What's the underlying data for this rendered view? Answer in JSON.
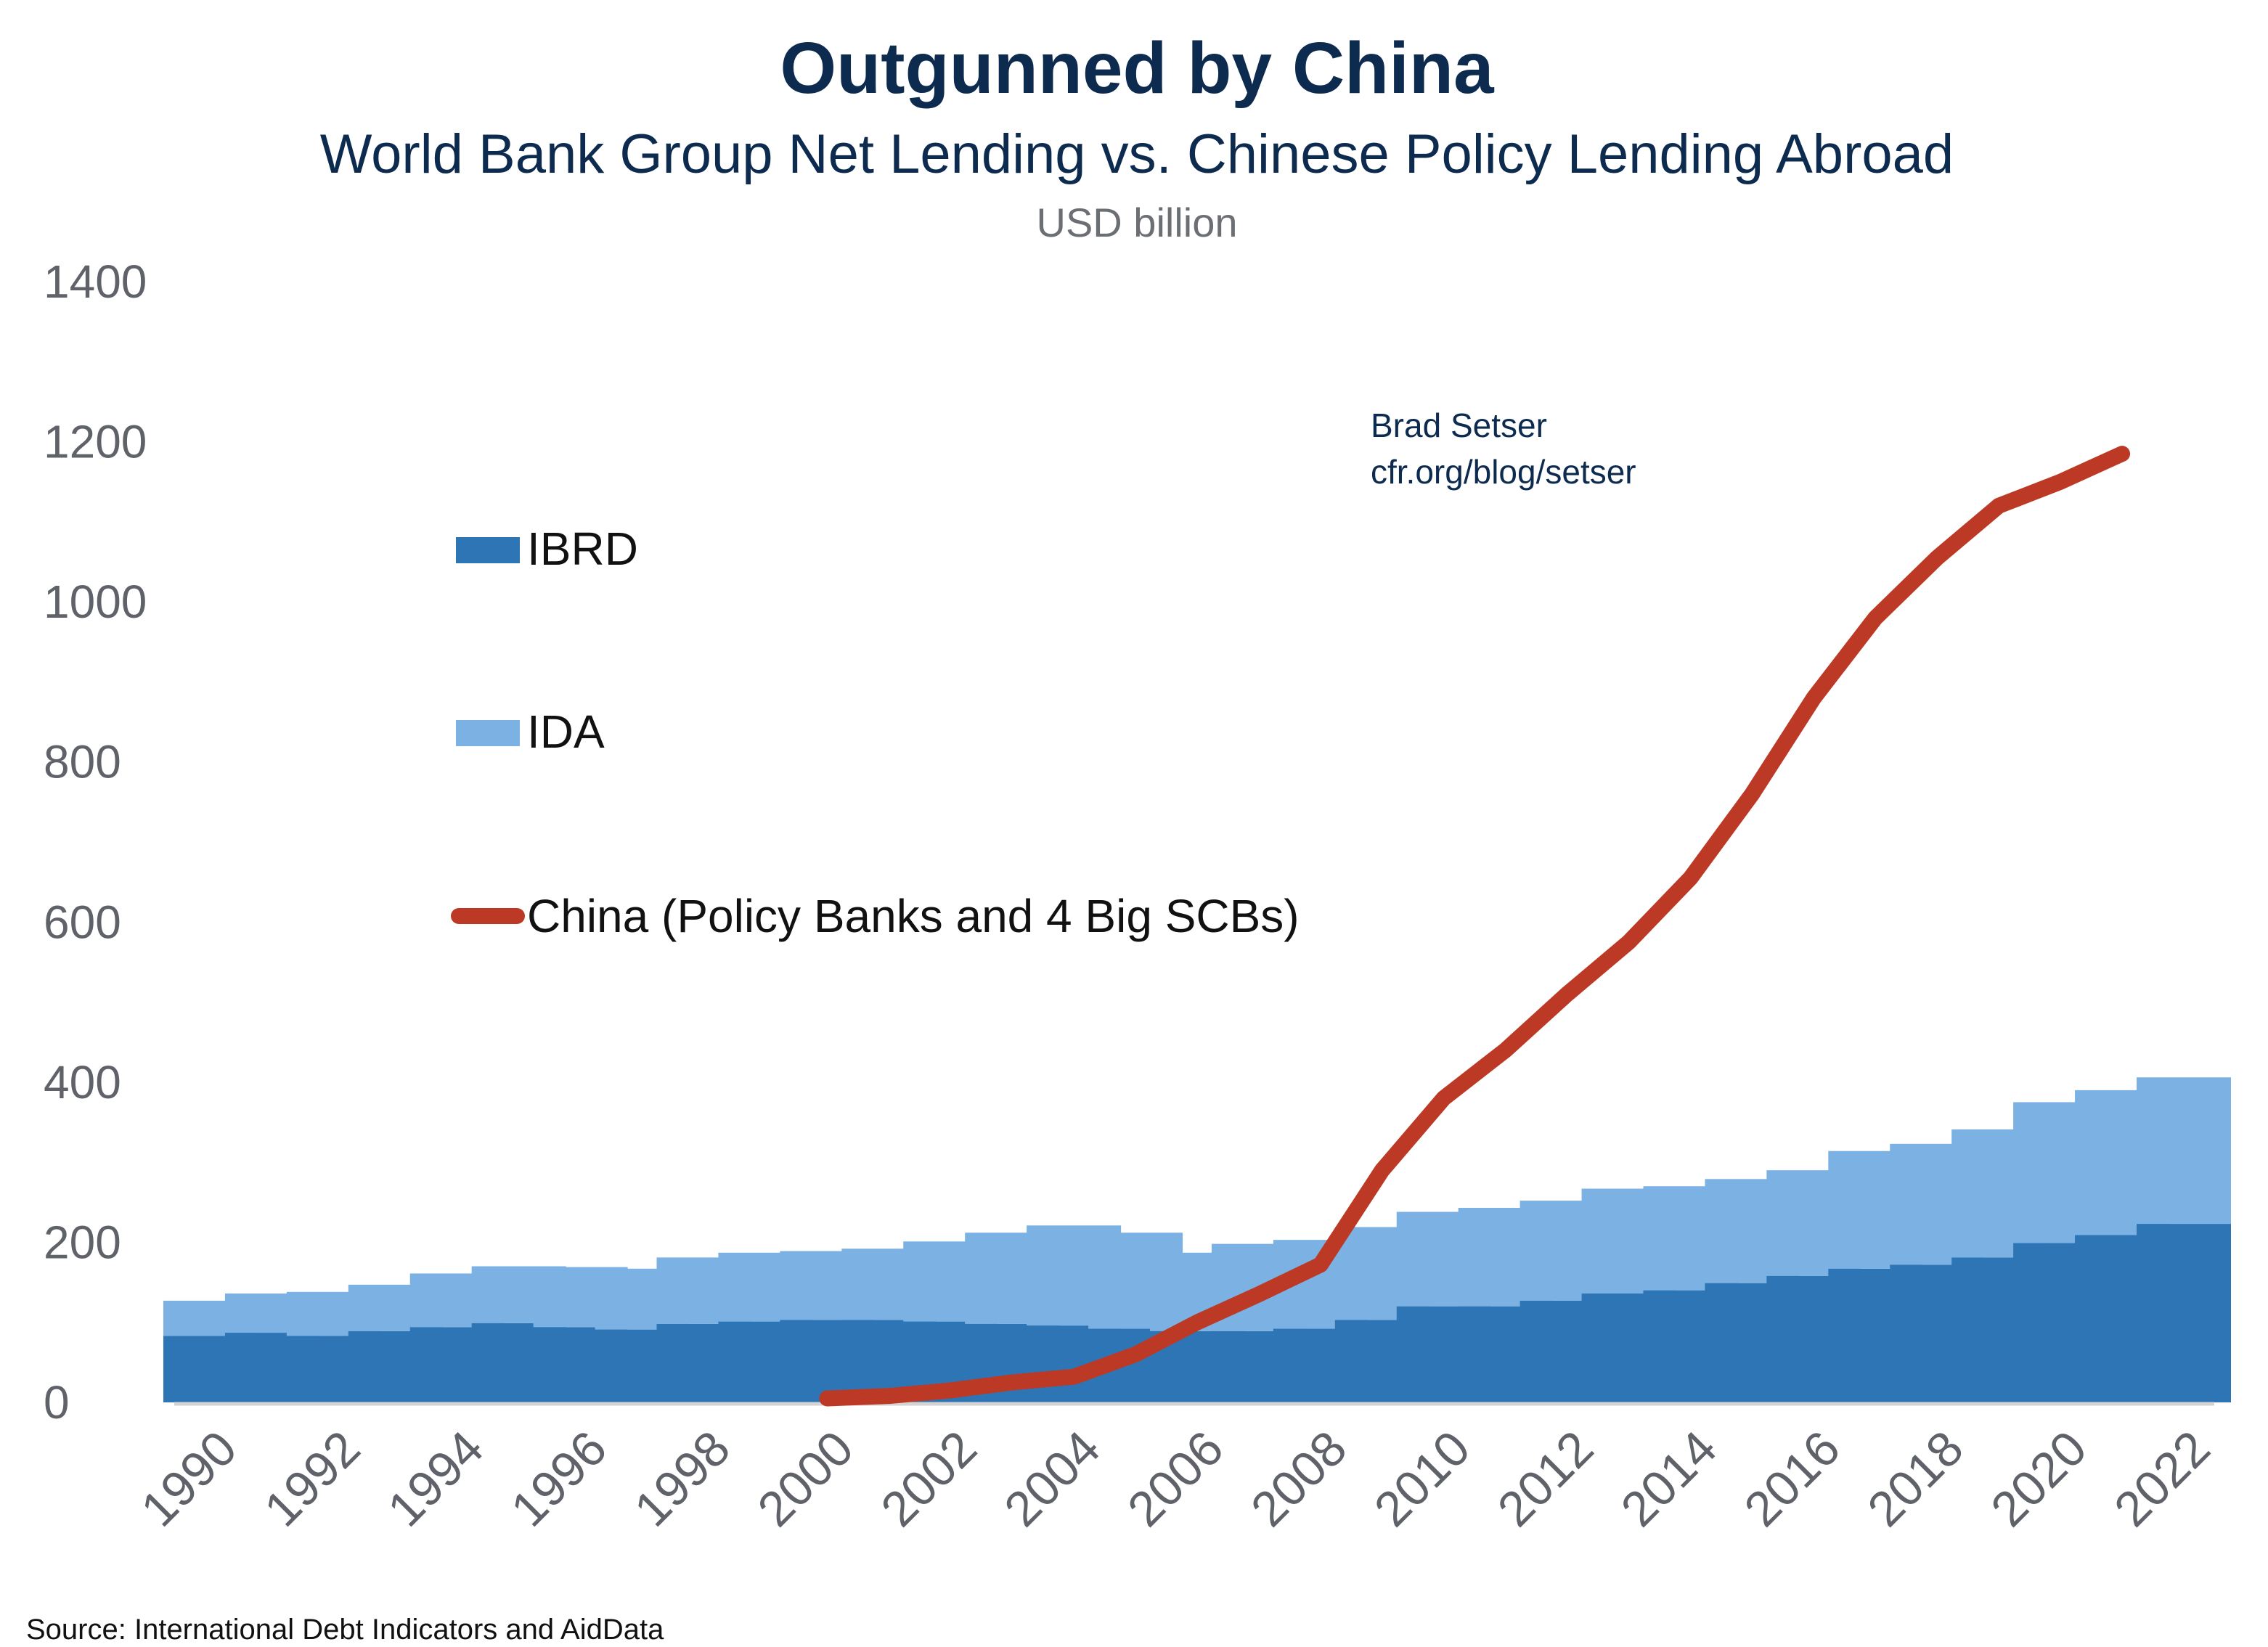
{
  "chart_data": {
    "type": "bar",
    "stacked": true,
    "title": "Outgunned by China",
    "subtitle": "World Bank Group Net Lending vs. Chinese Policy Lending Abroad",
    "ylabel": "USD billion",
    "xlabel": "",
    "ylim": [
      0,
      1400
    ],
    "yticks": [
      "0",
      "200",
      "400",
      "600",
      "800",
      "1000",
      "1200",
      "1400"
    ],
    "xtick_labels": [
      "1990",
      "1992",
      "1994",
      "1996",
      "1998",
      "2000",
      "2002",
      "2004",
      "2006",
      "2008",
      "2010",
      "2012",
      "2014",
      "2016",
      "2018",
      "2020",
      "2022"
    ],
    "categories": [
      "1990",
      "1991",
      "1992",
      "1993",
      "1994",
      "1995",
      "1996",
      "1997",
      "1998",
      "1999",
      "2000",
      "2001",
      "2002",
      "2003",
      "2004",
      "2005",
      "2006",
      "2007",
      "2008",
      "2009",
      "2010",
      "2011",
      "2012",
      "2013",
      "2014",
      "2015",
      "2016",
      "2017",
      "2018",
      "2019",
      "2020",
      "2021",
      "2022"
    ],
    "grid": false,
    "legend_position": "left",
    "series": [
      {
        "name": "IBRD",
        "type": "bar",
        "color": "#2e75b6",
        "values": [
          83,
          87,
          83,
          89,
          94,
          99,
          94,
          91,
          98,
          101,
          103,
          103,
          101,
          98,
          96,
          92,
          89,
          89,
          92,
          103,
          120,
          120,
          127,
          136,
          140,
          149,
          158,
          167,
          172,
          181,
          199,
          209,
          223
        ]
      },
      {
        "name": "IDA",
        "type": "bar",
        "color": "#7cb1e3",
        "values": [
          44,
          49,
          55,
          58,
          67,
          71,
          75,
          76,
          83,
          86,
          86,
          89,
          100,
          114,
          125,
          120,
          98,
          109,
          111,
          116,
          118,
          123,
          125,
          131,
          130,
          130,
          132,
          147,
          151,
          160,
          176,
          181,
          183
        ]
      },
      {
        "name": "China (Policy Banks and 4 Big SCBs)",
        "type": "line",
        "color": "#bc3a25",
        "x": [
          "2000",
          "2001",
          "2002",
          "2003",
          "2004",
          "2005",
          "2006",
          "2007",
          "2008",
          "2009",
          "2010",
          "2011",
          "2012",
          "2013",
          "2014",
          "2015",
          "2016",
          "2017",
          "2018",
          "2019",
          "2020",
          "2021"
        ],
        "values": [
          5,
          8,
          15,
          25,
          32,
          60,
          100,
          135,
          172,
          290,
          380,
          440,
          510,
          575,
          655,
          760,
          880,
          980,
          1055,
          1120,
          1150,
          1185
        ]
      }
    ],
    "annotations": [
      "Brad Setser",
      "cfr.org/blog/setser"
    ],
    "source": "Source: International Debt Indicators and AidData"
  }
}
